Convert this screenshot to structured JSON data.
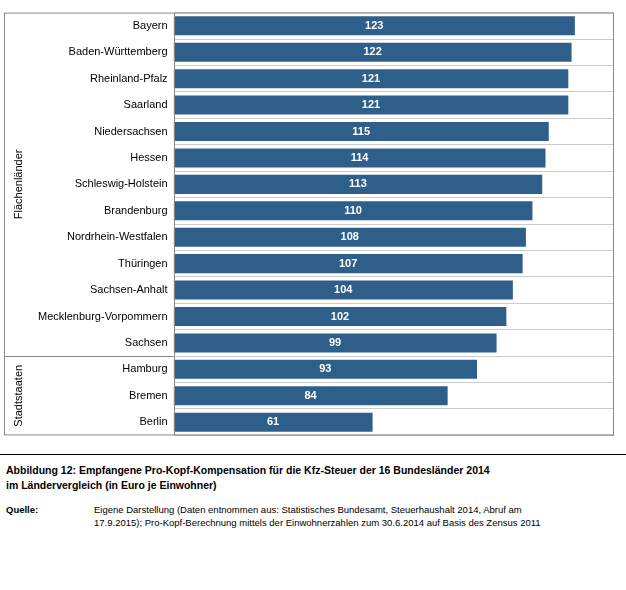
{
  "chart_data": {
    "type": "bar",
    "orientation": "horizontal",
    "title": [
      "Abbildung 12:  Empfangene Pro-Kopf-Kompensation für die Kfz-Steuer der 16 Bundesländer 2014",
      "im Ländervergleich (in Euro je Einwohner)"
    ],
    "categories": [
      "Bayern",
      "Baden-Württemberg",
      "Rheinland-Pfalz",
      "Saarland",
      "Niedersachsen",
      "Hessen",
      "Schleswig-Holstein",
      "Brandenburg",
      "Nordrhein-Westfalen",
      "Thüringen",
      "Sachsen-Anhalt",
      "Mecklenburg-Vorpommern",
      "Sachsen",
      "Hamburg",
      "Bremen",
      "Berlin"
    ],
    "values": [
      123,
      122,
      121,
      121,
      115,
      114,
      113,
      110,
      108,
      107,
      104,
      102,
      99,
      93,
      84,
      61
    ],
    "color": "#2E5F8A",
    "xlim": [
      0,
      135
    ],
    "data_labels": true,
    "tick_labels": "y",
    "grid": true,
    "groups": [
      {
        "label": "Flächenländer",
        "from": "Bayern",
        "to": "Sachsen"
      },
      {
        "label": "Stadtstaaten",
        "from": "Hamburg",
        "to": "Berlin"
      }
    ],
    "source": {
      "label": "Quelle:",
      "text": [
        "Eigene Darstellung (Daten entnommen aus: Statistisches Bundesamt, Steuerhaushalt 2014, Abruf am",
        "17.9.2015); Pro-Kopf-Berechnung mittels der Einwohnerzahlen zum 30.6.2014 auf Basis des Zensus 2011"
      ]
    }
  }
}
